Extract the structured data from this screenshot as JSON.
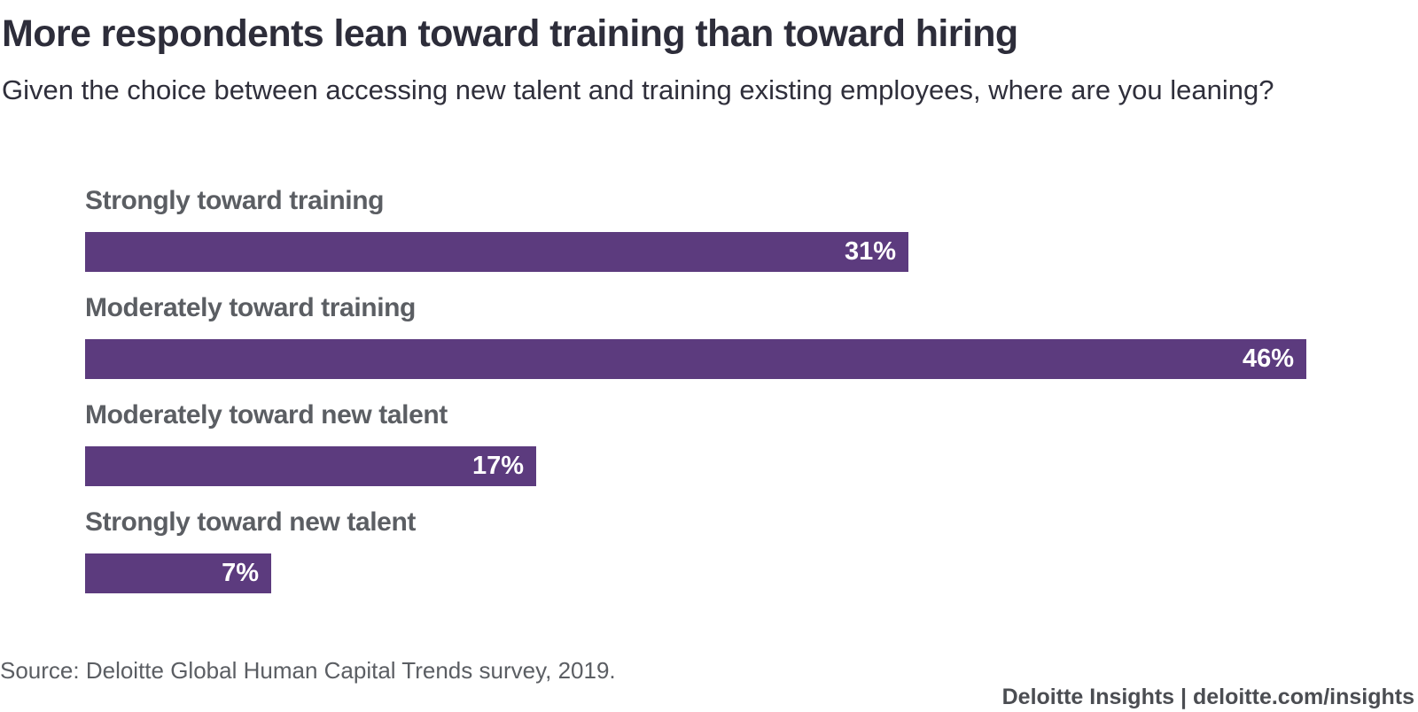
{
  "title": "More respondents lean toward training than toward hiring",
  "subtitle": "Given the choice between accessing new talent and training existing employees, where are you leaning?",
  "source": "Source: Deloitte Global Human Capital Trends survey, 2019.",
  "brand": "Deloitte Insights | deloitte.com/insights",
  "colors": {
    "bar": "#5c3b7e",
    "bar_label": "#ffffff",
    "category_label": "#5b5e63",
    "title": "#2d2d3a"
  },
  "chart_data": {
    "type": "bar",
    "orientation": "horizontal",
    "categories": [
      "Strongly toward training",
      "Moderately toward training",
      "Moderately toward new talent",
      "Strongly toward new talent"
    ],
    "values": [
      31,
      46,
      17,
      7
    ],
    "value_labels": [
      "31%",
      "46%",
      "17%",
      "7%"
    ],
    "unit": "%",
    "xlim": [
      0,
      46
    ],
    "grid": false,
    "legend": "none"
  }
}
